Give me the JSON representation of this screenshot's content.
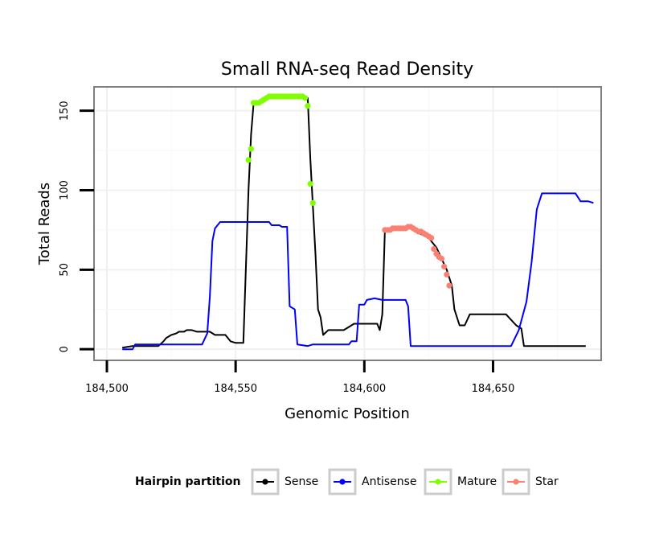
{
  "chart_data": {
    "type": "line",
    "title": "Small RNA-seq Read Density",
    "xlabel": "Genomic Position",
    "ylabel": "Total Reads",
    "xlim": [
      184495,
      184692
    ],
    "ylim": [
      -7,
      165
    ],
    "x_ticks": [
      184500,
      184550,
      184600,
      184650
    ],
    "x_tick_labels": [
      "184,500",
      "184,550",
      "184,600",
      "184,650"
    ],
    "y_ticks": [
      0,
      50,
      100,
      150
    ],
    "y_tick_labels": [
      "0",
      "50",
      "100",
      "150"
    ],
    "grid": true,
    "legend": {
      "title": "Hairpin partition",
      "position": "bottom",
      "entries": [
        {
          "label": "Sense",
          "color": "#000000"
        },
        {
          "label": "Antisense",
          "color": "#0000ff"
        },
        {
          "label": "Mature",
          "color": "#7fff00"
        },
        {
          "label": "Star",
          "color": "#fa8072"
        }
      ]
    },
    "series": [
      {
        "name": "Sense",
        "color": "#000000",
        "points": [
          [
            184506,
            1
          ],
          [
            184510,
            2
          ],
          [
            184520,
            2
          ],
          [
            184522,
            5
          ],
          [
            184523,
            7
          ],
          [
            184525,
            9
          ],
          [
            184527,
            10
          ],
          [
            184528,
            11
          ],
          [
            184530,
            11
          ],
          [
            184531,
            12
          ],
          [
            184533,
            12
          ],
          [
            184535,
            11
          ],
          [
            184540,
            11
          ],
          [
            184542,
            9
          ],
          [
            184546,
            9
          ],
          [
            184548,
            5
          ],
          [
            184550,
            4
          ],
          [
            184553,
            4
          ],
          [
            184555,
            100
          ],
          [
            184556,
            135
          ],
          [
            184557,
            155
          ],
          [
            184559,
            156
          ],
          [
            184562,
            158
          ],
          [
            184565,
            159
          ],
          [
            184575,
            159
          ],
          [
            184578,
            158
          ],
          [
            184579,
            120
          ],
          [
            184581,
            60
          ],
          [
            184582,
            25
          ],
          [
            184583,
            20
          ],
          [
            184584,
            9
          ],
          [
            184586,
            12
          ],
          [
            184592,
            12
          ],
          [
            184594,
            14
          ],
          [
            184596,
            16
          ],
          [
            184605,
            16
          ],
          [
            184606,
            12
          ],
          [
            184607,
            22
          ],
          [
            184608,
            75
          ],
          [
            184618,
            77
          ],
          [
            184620,
            74
          ],
          [
            184625,
            70
          ],
          [
            184628,
            64
          ],
          [
            184632,
            50
          ],
          [
            184634,
            40
          ],
          [
            184635,
            25
          ],
          [
            184637,
            15
          ],
          [
            184639,
            15
          ],
          [
            184641,
            22
          ],
          [
            184655,
            22
          ],
          [
            184659,
            15
          ],
          [
            184661,
            13
          ],
          [
            184662,
            2
          ],
          [
            184686,
            2
          ]
        ]
      },
      {
        "name": "Antisense",
        "color": "#0000ff",
        "points": [
          [
            184506,
            0
          ],
          [
            184510,
            0
          ],
          [
            184511,
            3
          ],
          [
            184537,
            3
          ],
          [
            184539,
            10
          ],
          [
            184540,
            33
          ],
          [
            184541,
            68
          ],
          [
            184542,
            76
          ],
          [
            184544,
            80
          ],
          [
            184563,
            80
          ],
          [
            184564,
            78
          ],
          [
            184567,
            78
          ],
          [
            184568,
            77
          ],
          [
            184570,
            77
          ],
          [
            184571,
            27
          ],
          [
            184573,
            25
          ],
          [
            184574,
            3
          ],
          [
            184578,
            2
          ],
          [
            184580,
            3
          ],
          [
            184594,
            3
          ],
          [
            184595,
            5
          ],
          [
            184597,
            5
          ],
          [
            184598,
            28
          ],
          [
            184600,
            28
          ],
          [
            184601,
            31
          ],
          [
            184604,
            32
          ],
          [
            184607,
            31
          ],
          [
            184616,
            31
          ],
          [
            184617,
            27
          ],
          [
            184618,
            2
          ],
          [
            184657,
            2
          ],
          [
            184660,
            12
          ],
          [
            184663,
            30
          ],
          [
            184665,
            55
          ],
          [
            184667,
            88
          ],
          [
            184669,
            98
          ],
          [
            184682,
            98
          ],
          [
            184684,
            93
          ],
          [
            184687,
            93
          ],
          [
            184689,
            92
          ]
        ]
      },
      {
        "name": "Mature",
        "color": "#7fff00",
        "points": [
          [
            184555,
            119
          ],
          [
            184556,
            126
          ],
          [
            184557,
            155
          ],
          [
            184558,
            155
          ],
          [
            184559,
            155
          ],
          [
            184560,
            156
          ],
          [
            184561,
            157
          ],
          [
            184562,
            158
          ],
          [
            184563,
            159
          ],
          [
            184564,
            159
          ],
          [
            184565,
            159
          ],
          [
            184566,
            159
          ],
          [
            184567,
            159
          ],
          [
            184568,
            159
          ],
          [
            184569,
            159
          ],
          [
            184570,
            159
          ],
          [
            184571,
            159
          ],
          [
            184572,
            159
          ],
          [
            184573,
            159
          ],
          [
            184574,
            159
          ],
          [
            184575,
            159
          ],
          [
            184576,
            159
          ],
          [
            184577,
            158
          ],
          [
            184578,
            153
          ],
          [
            184579,
            104
          ],
          [
            184580,
            92
          ]
        ]
      },
      {
        "name": "Star",
        "color": "#fa8072",
        "points": [
          [
            184608,
            75
          ],
          [
            184609,
            75
          ],
          [
            184610,
            75
          ],
          [
            184611,
            76
          ],
          [
            184612,
            76
          ],
          [
            184613,
            76
          ],
          [
            184614,
            76
          ],
          [
            184615,
            76
          ],
          [
            184616,
            76
          ],
          [
            184617,
            77
          ],
          [
            184618,
            77
          ],
          [
            184619,
            76
          ],
          [
            184620,
            75
          ],
          [
            184621,
            74
          ],
          [
            184622,
            74
          ],
          [
            184623,
            73
          ],
          [
            184624,
            72
          ],
          [
            184625,
            71
          ],
          [
            184626,
            70
          ],
          [
            184627,
            63
          ],
          [
            184628,
            60
          ],
          [
            184629,
            58
          ],
          [
            184630,
            57
          ],
          [
            184631,
            52
          ],
          [
            184632,
            47
          ],
          [
            184633,
            40
          ]
        ]
      }
    ]
  }
}
